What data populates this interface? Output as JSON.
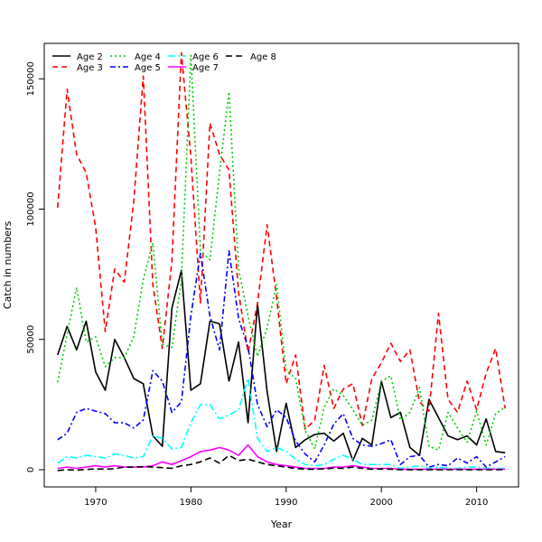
{
  "chart_data": {
    "type": "line",
    "xlabel": "Year",
    "ylabel": "Catch in numbers",
    "xlim": [
      1964.6,
      2014.4
    ],
    "ylim": [
      -6600,
      163600
    ],
    "x_ticks": [
      1970,
      1980,
      1990,
      2000,
      2010
    ],
    "y_ticks": [
      0,
      50000,
      100000,
      150000
    ],
    "legend_position": "top-left",
    "x": [
      1966,
      1967,
      1968,
      1969,
      1970,
      1971,
      1972,
      1973,
      1974,
      1975,
      1976,
      1977,
      1978,
      1979,
      1980,
      1981,
      1982,
      1983,
      1984,
      1985,
      1986,
      1987,
      1988,
      1989,
      1990,
      1991,
      1992,
      1993,
      1994,
      1995,
      1996,
      1997,
      1998,
      1999,
      2000,
      2001,
      2002,
      2003,
      2004,
      2005,
      2006,
      2007,
      2008,
      2009,
      2010,
      2011,
      2012,
      2013
    ],
    "series": [
      {
        "name": "Age 2",
        "color": "#000000",
        "dash": "solid",
        "values": [
          44000,
          55000,
          46000,
          57000,
          37500,
          30500,
          50000,
          43000,
          35000,
          33000,
          13000,
          9000,
          62000,
          76500,
          30500,
          33000,
          57000,
          56000,
          34000,
          49000,
          18000,
          63500,
          30000,
          7000,
          25500,
          8500,
          11500,
          13500,
          14000,
          11000,
          14000,
          3500,
          12000,
          9500,
          34000,
          20000,
          22000,
          8500,
          5500,
          27000,
          20000,
          13000,
          11500,
          13000,
          9500,
          19500,
          7000,
          6500
        ]
      },
      {
        "name": "Age 3",
        "color": "#ff0000",
        "dash": "6,4",
        "values": [
          100500,
          146000,
          121000,
          114000,
          93000,
          53000,
          77000,
          72000,
          103000,
          151000,
          71000,
          46500,
          80000,
          160000,
          120000,
          64000,
          133000,
          121000,
          115000,
          68000,
          45000,
          64000,
          94000,
          66000,
          33000,
          44000,
          15500,
          19000,
          40000,
          23500,
          31000,
          33000,
          17000,
          35000,
          41000,
          48500,
          41500,
          46000,
          26000,
          22500,
          60000,
          27000,
          22000,
          34000,
          23000,
          37000,
          46500,
          23500
        ]
      },
      {
        "name": "Age 4",
        "color": "#00cd00",
        "dash": "2,3",
        "values": [
          33500,
          52000,
          70000,
          49000,
          51000,
          39500,
          43000,
          43000,
          51000,
          73000,
          87000,
          48000,
          47000,
          73000,
          159000,
          84000,
          80500,
          114000,
          145000,
          77000,
          59000,
          43500,
          54500,
          71000,
          38000,
          35000,
          15000,
          8000,
          24000,
          31000,
          28500,
          23000,
          17000,
          19000,
          34000,
          36000,
          19000,
          22000,
          31500,
          9000,
          7500,
          22000,
          16000,
          10500,
          22500,
          9500,
          21500,
          24000
        ]
      },
      {
        "name": "Age 5",
        "color": "#0000ff",
        "dash": "6,3,2,3",
        "values": [
          11500,
          14000,
          22000,
          23500,
          22500,
          21500,
          18000,
          18000,
          16000,
          19000,
          38000,
          34000,
          22000,
          26000,
          59000,
          83000,
          59000,
          46000,
          84000,
          58000,
          47000,
          25000,
          16500,
          23000,
          20000,
          11000,
          6000,
          3000,
          9500,
          17500,
          21500,
          12000,
          9500,
          9000,
          10000,
          11500,
          2000,
          5000,
          5500,
          1000,
          2000,
          1500,
          4500,
          2500,
          5000,
          1000,
          3000,
          5000
        ]
      },
      {
        "name": "Age 6",
        "color": "#00ffff",
        "dash": "8,3,2,3",
        "values": [
          2500,
          5000,
          4500,
          5500,
          5000,
          4500,
          6000,
          5500,
          4500,
          5000,
          13000,
          12000,
          8000,
          8500,
          18000,
          25000,
          25000,
          19500,
          21000,
          23000,
          35000,
          12000,
          7000,
          8500,
          7000,
          4000,
          2000,
          1500,
          2000,
          4000,
          5500,
          4000,
          2000,
          2000,
          2000,
          2000,
          500,
          1000,
          1500,
          500,
          1000,
          500,
          500,
          1000,
          1000,
          500,
          500,
          500
        ]
      },
      {
        "name": "Age 7",
        "color": "#ff00ff",
        "dash": "solid",
        "values": [
          500,
          1000,
          500,
          1000,
          1500,
          1000,
          1500,
          1000,
          1000,
          1000,
          1500,
          3000,
          2000,
          3500,
          5000,
          7000,
          7500,
          8500,
          7500,
          5500,
          9500,
          5000,
          3000,
          2000,
          1500,
          1000,
          500,
          500,
          500,
          1000,
          1000,
          1500,
          1000,
          500,
          500,
          500,
          200,
          200,
          200,
          200,
          200,
          200,
          200,
          200,
          200,
          200,
          200,
          200
        ]
      },
      {
        "name": "Age 8",
        "color": "#000000",
        "dash": "7,4",
        "values": [
          -300,
          0,
          -200,
          100,
          300,
          200,
          400,
          1000,
          1000,
          1200,
          1000,
          800,
          500,
          1500,
          2000,
          3000,
          4500,
          2500,
          5500,
          3500,
          4000,
          3000,
          2000,
          1500,
          1000,
          500,
          200,
          200,
          300,
          600,
          500,
          1000,
          500,
          200,
          300,
          200,
          0,
          0,
          0,
          0,
          0,
          0,
          0,
          0,
          0,
          0,
          0,
          0
        ]
      }
    ]
  }
}
